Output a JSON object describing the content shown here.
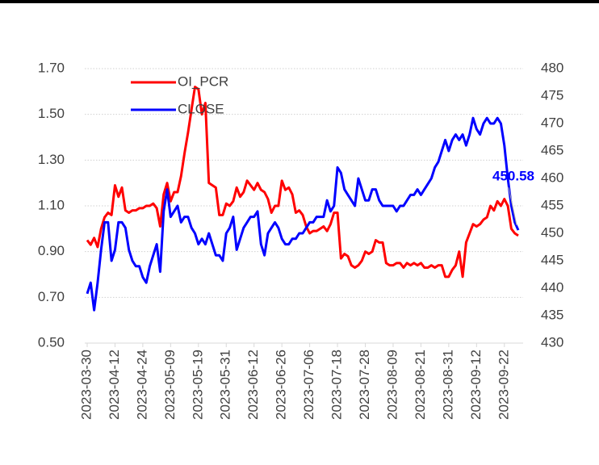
{
  "chart_data": {
    "type": "line",
    "categories": [
      "2023-03-30",
      null,
      null,
      null,
      null,
      null,
      null,
      null,
      "2023-04-12",
      null,
      null,
      null,
      null,
      null,
      null,
      null,
      "2023-04-24",
      null,
      null,
      null,
      null,
      null,
      null,
      null,
      "2023-05-09",
      null,
      null,
      null,
      null,
      null,
      null,
      null,
      "2023-05-19",
      null,
      null,
      null,
      null,
      null,
      null,
      null,
      "2023-05-31",
      null,
      null,
      null,
      null,
      null,
      null,
      null,
      "2023-06-12",
      null,
      null,
      null,
      null,
      null,
      null,
      null,
      "2023-06-26",
      null,
      null,
      null,
      null,
      null,
      null,
      null,
      "2023-07-06",
      null,
      null,
      null,
      null,
      null,
      null,
      null,
      "2023-07-18",
      null,
      null,
      null,
      null,
      null,
      null,
      null,
      "2023-07-28",
      null,
      null,
      null,
      null,
      null,
      null,
      null,
      "2023-08-09",
      null,
      null,
      null,
      null,
      null,
      null,
      null,
      "2023-08-21",
      null,
      null,
      null,
      null,
      null,
      null,
      null,
      "2023-08-31",
      null,
      null,
      null,
      null,
      null,
      null,
      null,
      "2023-09-12",
      null,
      null,
      null,
      null,
      null,
      null,
      null,
      "2023-09-22",
      null,
      null,
      null,
      null
    ],
    "series": [
      {
        "name": "OI_PCR",
        "color": "#ff0000",
        "axis": "y",
        "values": [
          0.95,
          0.93,
          0.96,
          0.92,
          1.0,
          1.05,
          1.07,
          1.06,
          1.19,
          1.14,
          1.18,
          1.08,
          1.07,
          1.08,
          1.08,
          1.09,
          1.09,
          1.1,
          1.1,
          1.11,
          1.09,
          1.01,
          1.15,
          1.2,
          1.12,
          1.16,
          1.16,
          1.23,
          1.33,
          1.42,
          1.52,
          1.62,
          1.61,
          1.5,
          1.55,
          1.2,
          1.19,
          1.18,
          1.06,
          1.06,
          1.11,
          1.1,
          1.12,
          1.18,
          1.14,
          1.16,
          1.21,
          1.19,
          1.17,
          1.2,
          1.17,
          1.16,
          1.13,
          1.07,
          1.1,
          1.1,
          1.21,
          1.17,
          1.18,
          1.15,
          1.07,
          1.08,
          1.06,
          1.01,
          0.98,
          0.99,
          0.99,
          1.0,
          1.01,
          0.99,
          1.02,
          1.07,
          1.07,
          0.87,
          0.89,
          0.88,
          0.84,
          0.83,
          0.84,
          0.86,
          0.9,
          0.89,
          0.9,
          0.95,
          0.94,
          0.94,
          0.85,
          0.84,
          0.84,
          0.85,
          0.85,
          0.83,
          0.85,
          0.84,
          0.85,
          0.84,
          0.85,
          0.83,
          0.83,
          0.84,
          0.83,
          0.84,
          0.84,
          0.79,
          0.79,
          0.82,
          0.84,
          0.9,
          0.79,
          0.94,
          0.98,
          1.02,
          1.01,
          1.02,
          1.04,
          1.05,
          1.1,
          1.08,
          1.12,
          1.1,
          1.13,
          1.1,
          1.0,
          0.98,
          0.97
        ]
      },
      {
        "name": "CLOSE",
        "color": "#0000ff",
        "axis": "y2",
        "values": [
          439,
          441,
          436,
          441,
          447,
          452,
          452,
          445,
          447,
          452,
          452,
          451,
          447,
          445,
          444,
          444,
          442,
          441,
          444,
          446,
          448,
          443,
          454,
          458,
          453,
          454,
          455,
          452,
          453,
          453,
          451,
          450,
          448,
          449,
          448,
          450,
          448,
          446,
          446,
          445,
          450,
          451,
          453,
          447,
          449,
          451,
          452,
          453,
          453,
          454,
          448,
          446,
          450,
          451,
          452,
          451,
          449,
          448,
          448,
          449,
          449,
          450,
          450,
          451,
          452,
          452,
          453,
          453,
          453,
          456,
          454,
          455,
          462,
          461,
          458,
          457,
          456,
          455,
          460,
          458,
          456,
          456,
          458,
          458,
          456,
          455,
          455,
          455,
          455,
          454,
          455,
          455,
          456,
          457,
          457,
          458,
          457,
          458,
          459,
          460,
          462,
          463,
          465,
          467,
          465,
          467,
          468,
          467,
          468,
          466,
          468,
          471,
          469,
          468,
          470,
          471,
          470,
          470,
          471,
          470,
          466,
          460,
          455,
          452,
          450.58
        ]
      }
    ],
    "ylim": [
      0.5,
      1.7
    ],
    "yticks": [
      {
        "value": 0.5,
        "label": "0.50"
      },
      {
        "value": 0.7,
        "label": "0.70"
      },
      {
        "value": 0.9,
        "label": "0.90"
      },
      {
        "value": 1.1,
        "label": "1.10"
      },
      {
        "value": 1.3,
        "label": "1.30"
      },
      {
        "value": 1.5,
        "label": "1.50"
      },
      {
        "value": 1.7,
        "label": "1.70"
      }
    ],
    "y2lim": [
      430,
      480
    ],
    "y2ticks": [
      430,
      435,
      440,
      445,
      450,
      455,
      460,
      465,
      470,
      475,
      480
    ],
    "grid": true,
    "legend": "upper left"
  }
}
